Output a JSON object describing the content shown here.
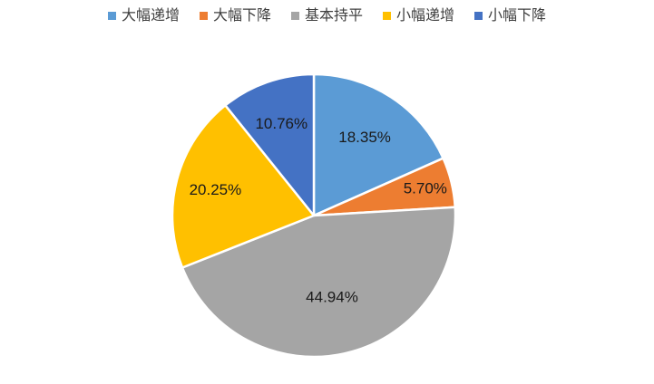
{
  "chart_data": {
    "type": "pie",
    "categories": [
      "大幅递增",
      "大幅下降",
      "基本持平",
      "小幅递增",
      "小幅下降"
    ],
    "values": [
      18.35,
      5.7,
      44.94,
      20.25,
      10.76
    ],
    "data_labels": [
      "18.35%",
      "5.70%",
      "44.94%",
      "20.25%",
      "10.76%"
    ],
    "colors": [
      "#5B9BD5",
      "#ED7D31",
      "#A5A5A5",
      "#FFC000",
      "#4472C4"
    ],
    "legend_position": "top",
    "start_angle": "12 o'clock",
    "direction": "clockwise"
  }
}
